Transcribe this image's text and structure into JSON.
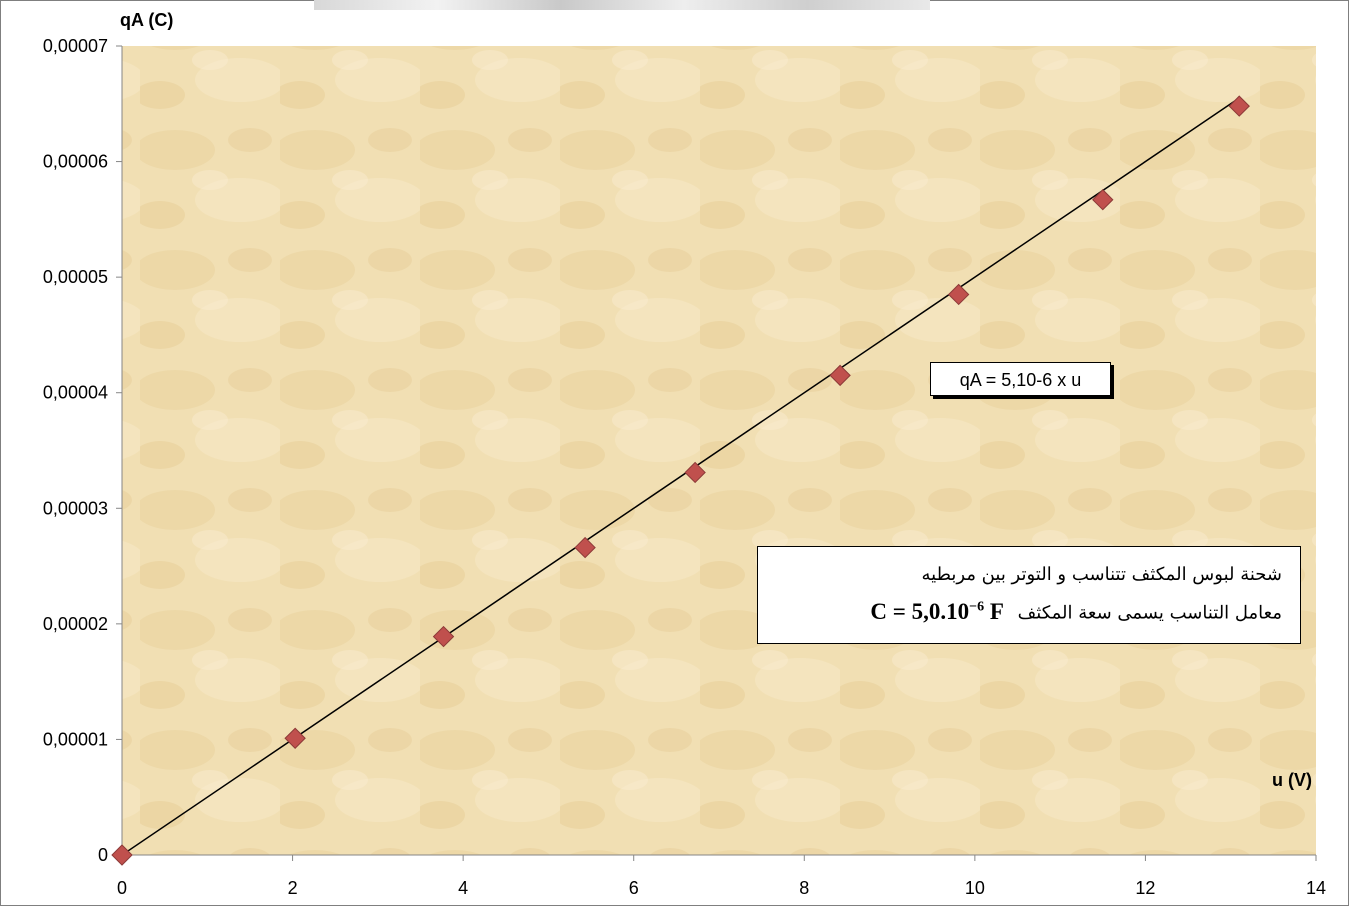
{
  "chart_data": {
    "type": "scatter",
    "xlabel": "u (V)",
    "ylabel": "qA (C)",
    "xlim": [
      0,
      14
    ],
    "ylim": [
      0,
      7e-05
    ],
    "x_ticks": [
      "0",
      "2",
      "4",
      "6",
      "8",
      "10",
      "12",
      "14"
    ],
    "y_ticks": [
      "0",
      "0,00001",
      "0,00002",
      "0,00003",
      "0,00004",
      "0,00005",
      "0,00006",
      "0,00007"
    ],
    "series": [
      {
        "marker": "diamond",
        "color": "#c0504d",
        "points": [
          {
            "x": 0,
            "y": 0
          },
          {
            "x": 2.03,
            "y": 1.01e-05
          },
          {
            "x": 3.77,
            "y": 1.89e-05
          },
          {
            "x": 5.43,
            "y": 2.66e-05
          },
          {
            "x": 6.72,
            "y": 3.31e-05
          },
          {
            "x": 8.42,
            "y": 4.15e-05
          },
          {
            "x": 9.81,
            "y": 4.85e-05
          },
          {
            "x": 11.5,
            "y": 5.67e-05
          },
          {
            "x": 13.1,
            "y": 6.48e-05
          }
        ]
      }
    ],
    "trendline": {
      "slope": 5e-06,
      "intercept": 0,
      "x_from": 0,
      "x_to": 13.1,
      "color": "#000000"
    },
    "grid": false,
    "annotations": {
      "equation": "qA = 5,10-6 x u",
      "note_line1": "شحنة لبوس المكثف تتناسب و التوتر بين مربطيه",
      "note_line2": "معامل التناسب يسمى سعة المكثف",
      "note_formula_base": "C = 5,0.10",
      "note_formula_exp": "−6",
      "note_formula_unit": " F"
    }
  }
}
